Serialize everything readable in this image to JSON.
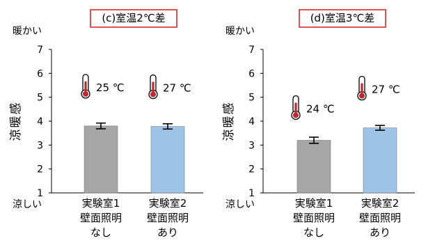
{
  "chart_data": [
    {
      "type": "bar",
      "title": "(c)室温2℃差",
      "ylabel": "涼暖感",
      "ylim": [
        1,
        7
      ],
      "yticks": [
        1,
        2,
        3,
        4,
        5,
        6,
        7
      ],
      "y_top_label": "暖かい",
      "y_bottom_label": "涼しい",
      "categories": [
        [
          "実験室1",
          "壁面照明",
          "なし"
        ],
        [
          "実験室2",
          "壁面照明",
          "あり"
        ]
      ],
      "values": [
        3.8,
        3.78
      ],
      "errors": [
        0.12,
        0.11
      ],
      "bar_colors": [
        "#a6a6a6",
        "#9dc3e6"
      ],
      "annotations": [
        "25 ℃",
        "27 ℃"
      ],
      "grid": false,
      "title_border_color": "#e04040"
    },
    {
      "type": "bar",
      "title": "(d)室温3℃差",
      "ylabel": "涼暖感",
      "ylim": [
        1,
        7
      ],
      "yticks": [
        1,
        2,
        3,
        4,
        5,
        6,
        7
      ],
      "y_top_label": "暖かい",
      "y_bottom_label": "涼しい",
      "categories": [
        [
          "実験室1",
          "壁面照明",
          "なし"
        ],
        [
          "実験室2",
          "壁面照明",
          "あり"
        ]
      ],
      "values": [
        3.2,
        3.72
      ],
      "errors": [
        0.13,
        0.1
      ],
      "bar_colors": [
        "#a6a6a6",
        "#9dc3e6"
      ],
      "annotations": [
        "24 ℃",
        "27 ℃"
      ],
      "grid": false,
      "title_border_color": "#e04040"
    }
  ],
  "icons": {
    "annotation_icon": "thermometer-icon",
    "thermometer_color": "#c0282d"
  }
}
